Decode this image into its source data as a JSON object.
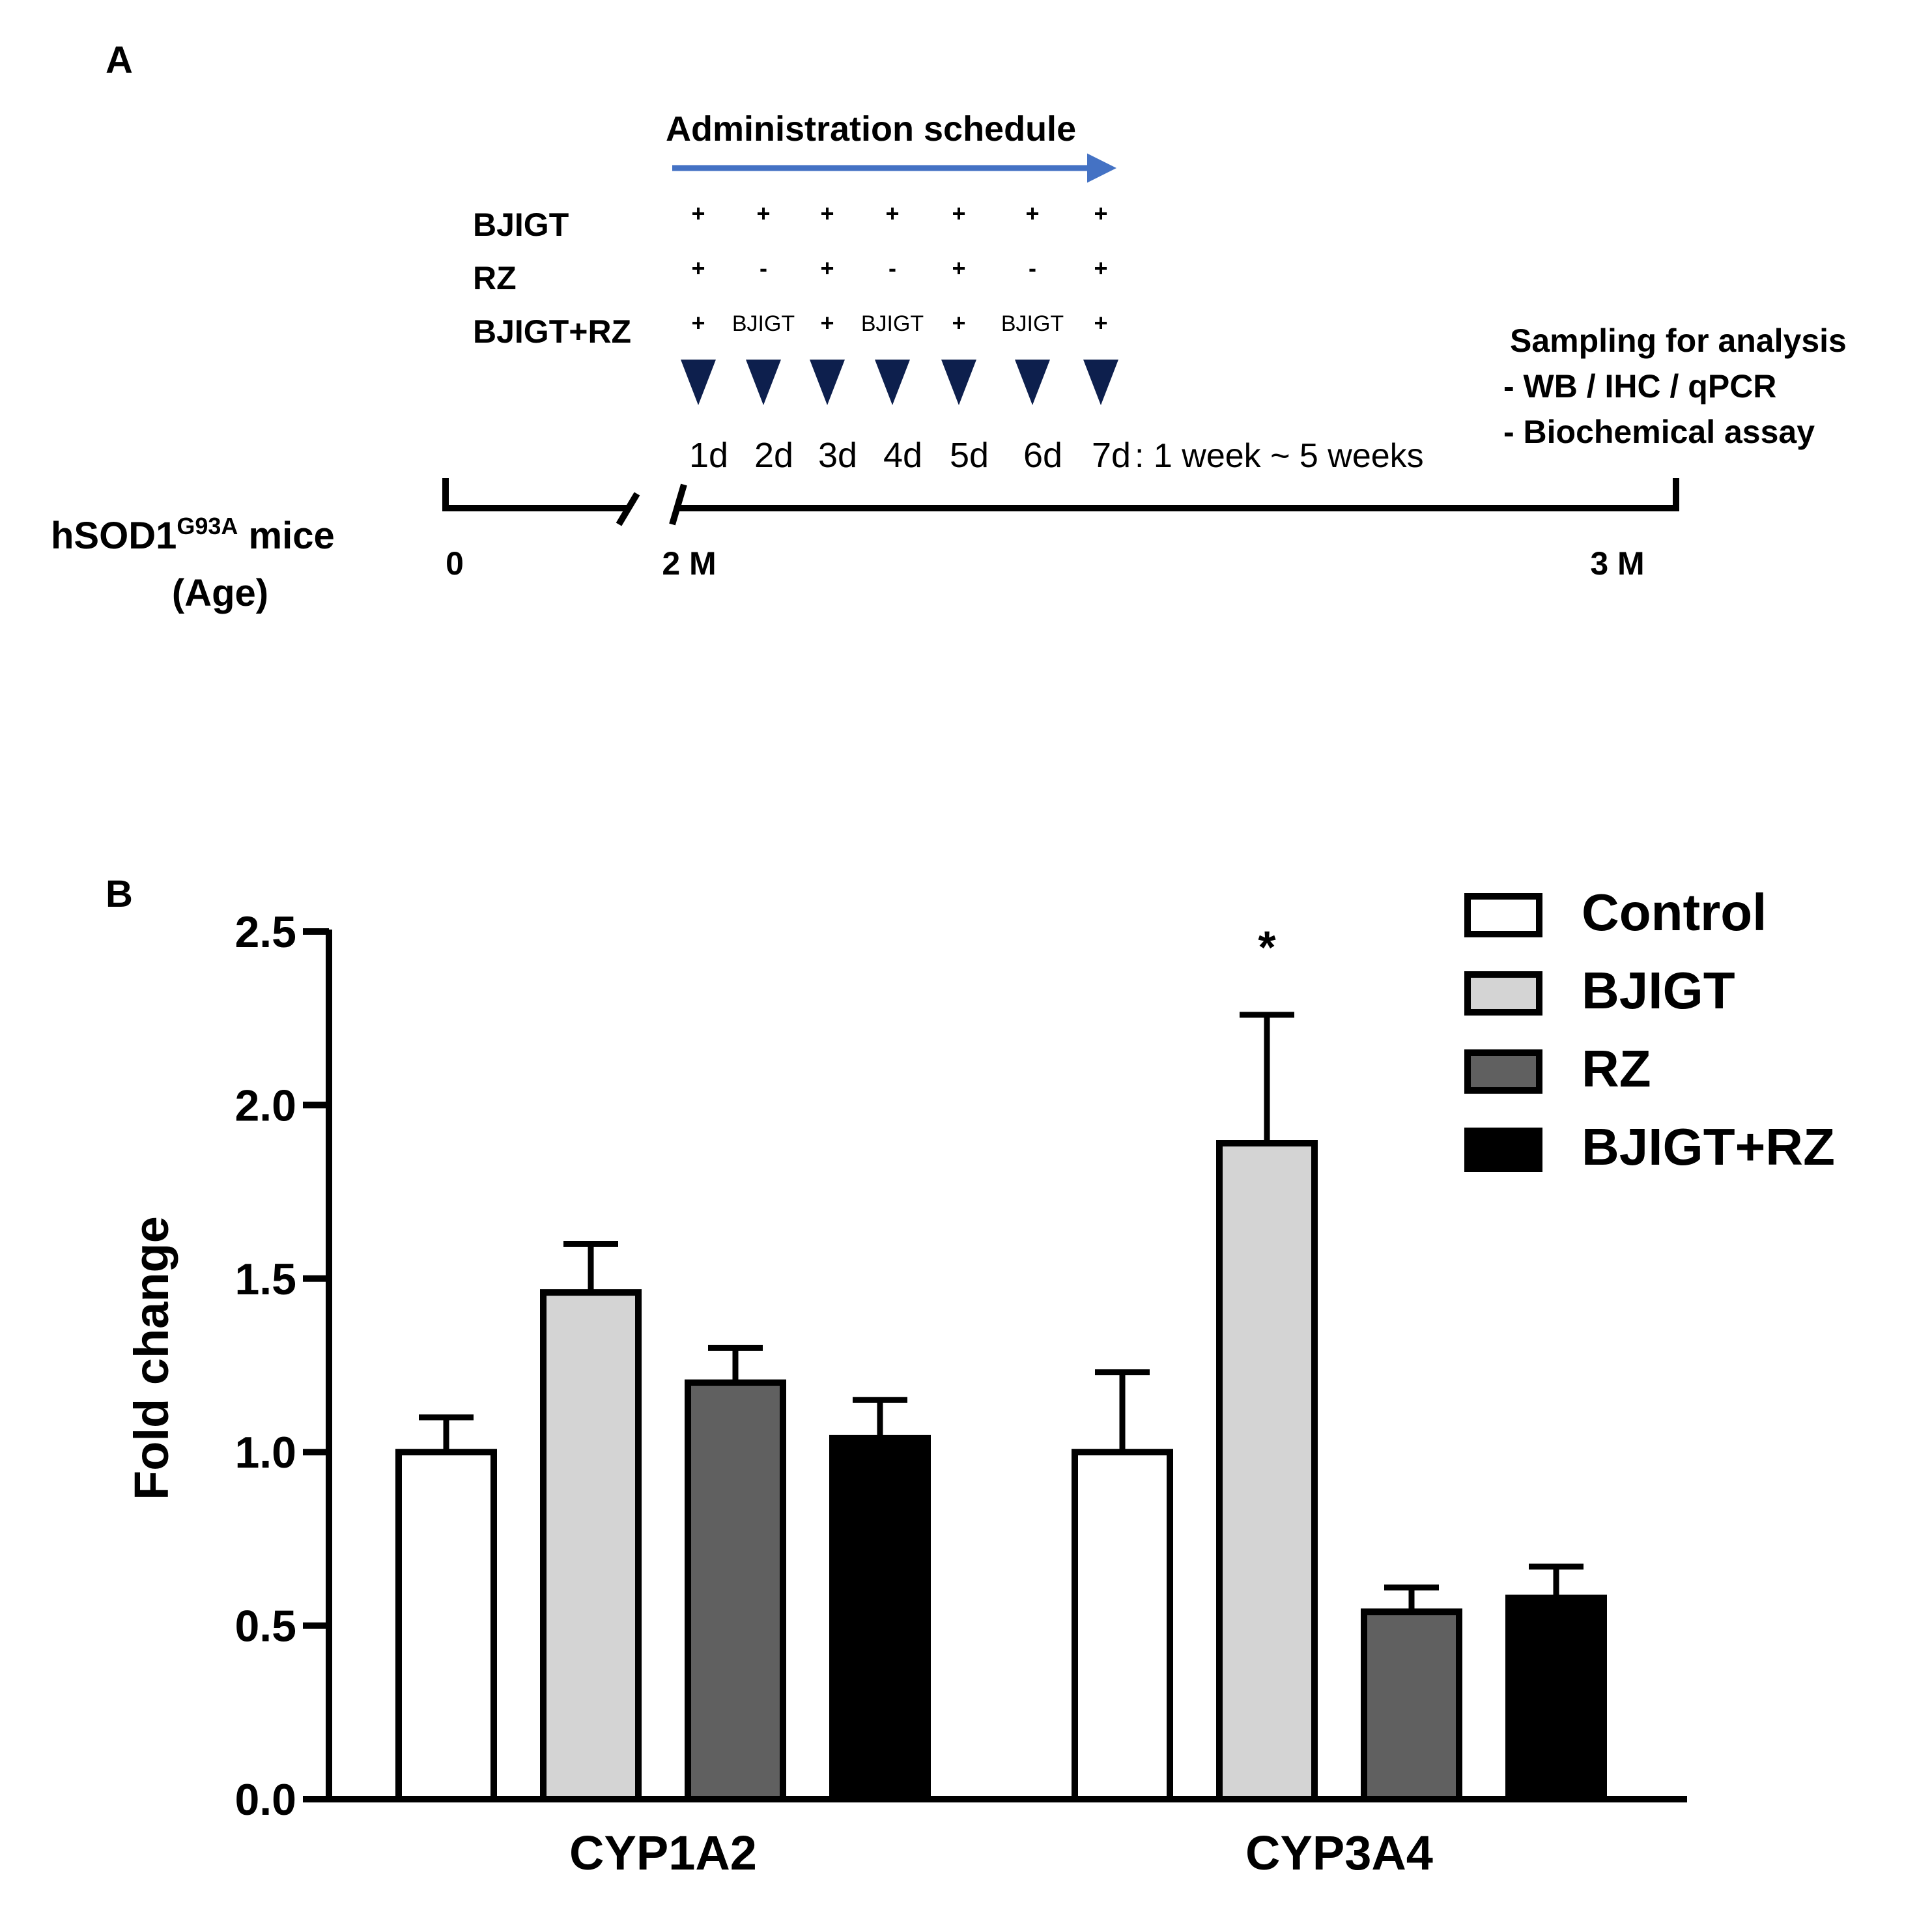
{
  "panel_a": {
    "label": "A",
    "schedule_title": "Administration schedule",
    "schedule_colors": {
      "arrow": "#4472c4",
      "triangle": "#0d1f4d"
    },
    "groups": [
      {
        "name": "BJIGT",
        "marks": [
          "+",
          "+",
          "+",
          "+",
          "+",
          "+",
          "+"
        ]
      },
      {
        "name": "RZ",
        "marks": [
          "+",
          "-",
          "+",
          "-",
          "+",
          "-",
          "+"
        ]
      },
      {
        "name": "BJIGT+RZ",
        "marks": [
          "+",
          "BJIGT",
          "+",
          "BJIGT",
          "+",
          "BJIGT",
          "+"
        ]
      }
    ],
    "days": [
      "1d",
      "2d",
      "3d",
      "4d",
      "5d",
      "6d",
      "7d"
    ],
    "duration": ": 1 week ~ 5 weeks",
    "sampling": {
      "title": "Sampling for analysis",
      "items": [
        "- WB / IHC / qPCR",
        "- Biochemical assay"
      ]
    },
    "mice_label": "hSOD1",
    "mice_superscript": "G93A",
    "mice_suffix": " mice",
    "age_label": "(Age)",
    "timeline_ticks": [
      "0",
      "2 M",
      "3 M"
    ]
  },
  "chart_data": {
    "type": "bar",
    "panel_label": "B",
    "title": "",
    "xlabel": "",
    "ylabel": "Fold change",
    "ylim": [
      0,
      2.5
    ],
    "yticks": [
      "0.0",
      "0.5",
      "1.0",
      "1.5",
      "2.0",
      "2.5"
    ],
    "categories": [
      "CYP1A2",
      "CYP3A4"
    ],
    "series": [
      {
        "name": "Control",
        "color": "#ffffff",
        "values": [
          1.0,
          1.0
        ],
        "errors": [
          0.1,
          0.23
        ]
      },
      {
        "name": "BJIGT",
        "color": "#d4d4d4",
        "values": [
          1.46,
          1.89
        ],
        "errors": [
          0.14,
          0.37
        ]
      },
      {
        "name": "RZ",
        "color": "#606060",
        "values": [
          1.2,
          0.54
        ],
        "errors": [
          0.1,
          0.07
        ]
      },
      {
        "name": "BJIGT+RZ",
        "color": "#000000",
        "values": [
          1.04,
          0.58
        ],
        "errors": [
          0.11,
          0.09
        ]
      }
    ],
    "annotations": [
      {
        "category": "CYP3A4",
        "series": "BJIGT",
        "text": "*"
      }
    ],
    "legend_position": "top-right",
    "grid": false
  }
}
